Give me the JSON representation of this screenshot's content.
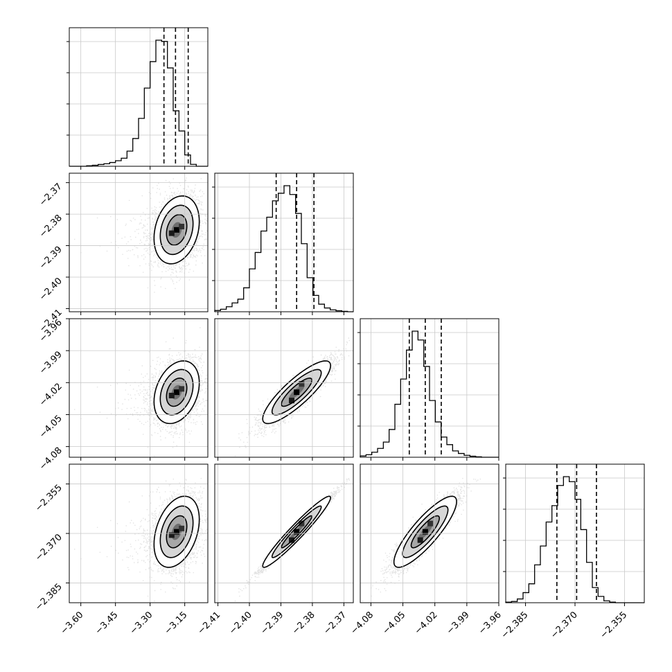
{
  "chart_data": {
    "type": "corner",
    "parameters": [
      {
        "range": [
          -3.65,
          -3.05
        ],
        "ticks": [
          -3.6,
          -3.45,
          -3.3,
          -3.15
        ],
        "tick_labels": [
          "−3.60",
          "−3.45",
          "−3.30",
          "−3.15"
        ],
        "quantiles": [
          -3.24,
          -3.19,
          -3.135
        ],
        "histogram": [
          0,
          0,
          0,
          0.004,
          0.008,
          0.014,
          0.02,
          0.03,
          0.044,
          0.064,
          0.12,
          0.22,
          0.38,
          0.62,
          0.83,
          1.0,
          0.99,
          0.78,
          0.44,
          0.28,
          0.09,
          0.015,
          0,
          0
        ],
        "mean": -3.185,
        "std": 0.05,
        "corr": 0.0,
        "skew": -0.12
      },
      {
        "range": [
          -2.411,
          -2.367
        ],
        "ticks": [
          -2.41,
          -2.4,
          -2.39,
          -2.38,
          -2.37
        ],
        "tick_labels": [
          "−2.41",
          "−2.40",
          "−2.39",
          "−2.38",
          "−2.37"
        ],
        "quantiles": [
          -2.3915,
          -2.385,
          -2.3795
        ],
        "histogram": [
          0.01,
          0.02,
          0.04,
          0.07,
          0.1,
          0.19,
          0.34,
          0.47,
          0.64,
          0.75,
          0.88,
          0.94,
          1.0,
          0.93,
          0.78,
          0.54,
          0.27,
          0.13,
          0.06,
          0.03,
          0.015,
          0.008,
          0.003,
          0
        ],
        "mean": -2.385,
        "std": 0.0055,
        "corr": 0.25,
        "skew": 0
      },
      {
        "range": [
          -4.09,
          -3.96
        ],
        "ticks": [
          -4.08,
          -4.05,
          -4.02,
          -3.99,
          -3.96
        ],
        "tick_labels": [
          "−4.08",
          "−4.05",
          "−4.02",
          "−3.99",
          "−3.96"
        ],
        "quantiles": [
          -4.044,
          -4.029,
          -4.014
        ],
        "histogram": [
          0.01,
          0.02,
          0.04,
          0.07,
          0.12,
          0.22,
          0.42,
          0.62,
          0.85,
          1.0,
          0.93,
          0.72,
          0.45,
          0.28,
          0.16,
          0.1,
          0.05,
          0.03,
          0.015,
          0.008,
          0.003,
          0,
          0,
          0
        ],
        "mean": -4.029,
        "std": 0.015,
        "corr": 0.3,
        "skew": 0
      },
      {
        "range": [
          -2.391,
          -2.349
        ],
        "ticks": [
          -2.385,
          -2.37,
          -2.355
        ],
        "tick_labels": [
          "−2.385",
          "−2.370",
          "−2.355"
        ],
        "quantiles": [
          -2.3755,
          -2.3695,
          -2.3635
        ],
        "histogram": [
          0.005,
          0.01,
          0.03,
          0.08,
          0.15,
          0.3,
          0.45,
          0.64,
          0.77,
          0.93,
          1.0,
          0.96,
          0.82,
          0.58,
          0.32,
          0.12,
          0.05,
          0.015,
          0.005,
          0,
          0,
          0,
          0,
          0
        ],
        "mean": -2.3695,
        "std": 0.0055,
        "corr": 0.35,
        "skew": 0
      }
    ],
    "pair_correlations": {
      "1-0": 0.25,
      "2-0": 0.3,
      "2-1": 0.85,
      "3-0": 0.35,
      "3-1": 0.96,
      "3-2": 0.85
    },
    "grid": true,
    "scatter_color": "#808080",
    "line_color": "#000000"
  }
}
